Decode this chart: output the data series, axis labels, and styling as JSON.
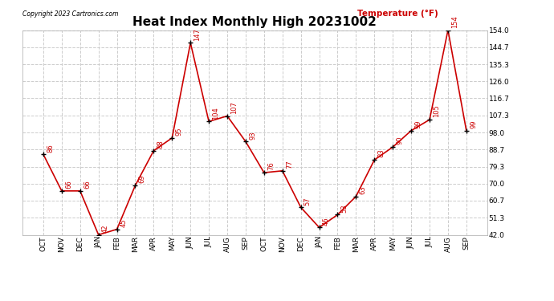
{
  "title": "Heat Index Monthly High 20231002",
  "copyright": "Copyright 2023 Cartronics.com",
  "legend_label": "Temperature (°F)",
  "months": [
    "OCT",
    "NOV",
    "DEC",
    "JAN",
    "FEB",
    "MAR",
    "APR",
    "MAY",
    "JUN",
    "JUL",
    "AUG",
    "SEP",
    "OCT",
    "NOV",
    "DEC",
    "JAN",
    "FEB",
    "MAR",
    "APR",
    "MAY",
    "JUN",
    "JUL",
    "AUG",
    "SEP"
  ],
  "values": [
    86,
    66,
    66,
    42,
    45,
    69,
    88,
    95,
    147,
    104,
    107,
    93,
    76,
    77,
    57,
    46,
    53,
    63,
    83,
    90,
    99,
    105,
    154,
    99
  ],
  "ylim": [
    42.0,
    154.0
  ],
  "yticks": [
    42.0,
    51.3,
    60.7,
    70.0,
    79.3,
    88.7,
    98.0,
    107.3,
    116.7,
    126.0,
    135.3,
    144.7,
    154.0
  ],
  "line_color": "#cc0000",
  "marker_color": "#000000",
  "background_color": "#ffffff",
  "grid_color": "#cccccc",
  "title_fontsize": 11,
  "label_fontsize": 6.5,
  "annotation_fontsize": 6,
  "legend_fontsize": 7.5,
  "copyright_fontsize": 5.5,
  "legend_color": "#cc0000"
}
